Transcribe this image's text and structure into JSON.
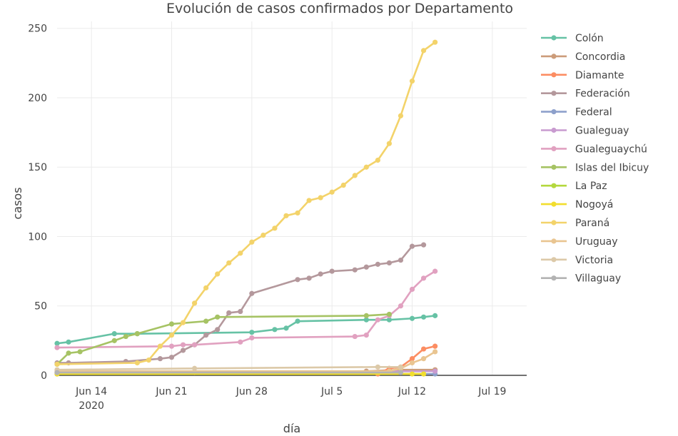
{
  "chart_data": {
    "type": "line",
    "title": "Evolución de casos confirmados por Departamento",
    "xlabel": "día",
    "ylabel": "casos",
    "x_ticks": [
      {
        "date": "2020-06-14",
        "label": "Jun 14",
        "sublabel": "2020"
      },
      {
        "date": "2020-06-21",
        "label": "Jun 21"
      },
      {
        "date": "2020-06-28",
        "label": "Jun 28"
      },
      {
        "date": "2020-07-05",
        "label": "Jul 5"
      },
      {
        "date": "2020-07-12",
        "label": "Jul 12"
      },
      {
        "date": "2020-07-19",
        "label": "Jul 19"
      }
    ],
    "xlim": [
      "2020-06-11",
      "2020-07-22"
    ],
    "y_ticks": [
      0,
      50,
      100,
      150,
      200,
      250
    ],
    "ylim": [
      0,
      255
    ],
    "grid": true,
    "legend_position": "right",
    "series": [
      {
        "name": "Colón",
        "color": "#66c2a5",
        "points": [
          [
            "2020-06-11",
            23
          ],
          [
            "2020-06-12",
            24
          ],
          [
            "2020-06-16",
            30
          ],
          [
            "2020-06-18",
            30
          ],
          [
            "2020-06-28",
            31
          ],
          [
            "2020-06-30",
            33
          ],
          [
            "2020-07-01",
            34
          ],
          [
            "2020-07-02",
            39
          ],
          [
            "2020-07-08",
            40
          ],
          [
            "2020-07-10",
            40
          ],
          [
            "2020-07-12",
            41
          ],
          [
            "2020-07-13",
            42
          ],
          [
            "2020-07-14",
            43
          ]
        ]
      },
      {
        "name": "Concordia",
        "color": "#cc9c7a",
        "points": [
          [
            "2020-06-11",
            2
          ],
          [
            "2020-06-23",
            2
          ],
          [
            "2020-07-08",
            3
          ],
          [
            "2020-07-11",
            4
          ],
          [
            "2020-07-14",
            4
          ]
        ]
      },
      {
        "name": "Diamante",
        "color": "#fc8d62",
        "points": [
          [
            "2020-06-11",
            1
          ],
          [
            "2020-07-09",
            1
          ],
          [
            "2020-07-10",
            5
          ],
          [
            "2020-07-11",
            6
          ],
          [
            "2020-07-12",
            12
          ],
          [
            "2020-07-13",
            19
          ],
          [
            "2020-07-14",
            21
          ]
        ]
      },
      {
        "name": "Federación",
        "color": "#b4989c",
        "points": [
          [
            "2020-06-11",
            9
          ],
          [
            "2020-06-12",
            9
          ],
          [
            "2020-06-17",
            10
          ],
          [
            "2020-06-20",
            12
          ],
          [
            "2020-06-21",
            13
          ],
          [
            "2020-06-22",
            18
          ],
          [
            "2020-06-23",
            22
          ],
          [
            "2020-06-24",
            29
          ],
          [
            "2020-06-25",
            33
          ],
          [
            "2020-06-26",
            45
          ],
          [
            "2020-06-27",
            46
          ],
          [
            "2020-06-28",
            59
          ],
          [
            "2020-07-02",
            69
          ],
          [
            "2020-07-03",
            70
          ],
          [
            "2020-07-04",
            73
          ],
          [
            "2020-07-05",
            75
          ],
          [
            "2020-07-07",
            76
          ],
          [
            "2020-07-08",
            78
          ],
          [
            "2020-07-09",
            80
          ],
          [
            "2020-07-10",
            81
          ],
          [
            "2020-07-11",
            83
          ],
          [
            "2020-07-12",
            93
          ],
          [
            "2020-07-13",
            94
          ]
        ]
      },
      {
        "name": "Federal",
        "color": "#8da0cb",
        "points": [
          [
            "2020-06-11",
            1
          ],
          [
            "2020-07-14",
            1
          ]
        ]
      },
      {
        "name": "Gualeguay",
        "color": "#c99bd0",
        "points": [
          [
            "2020-06-11",
            2
          ],
          [
            "2020-07-14",
            3
          ]
        ]
      },
      {
        "name": "Gualeguaychú",
        "color": "#e1a1c0",
        "points": [
          [
            "2020-06-11",
            20
          ],
          [
            "2020-06-21",
            21
          ],
          [
            "2020-06-22",
            22
          ],
          [
            "2020-06-23",
            22
          ],
          [
            "2020-06-27",
            24
          ],
          [
            "2020-06-28",
            27
          ],
          [
            "2020-07-07",
            28
          ],
          [
            "2020-07-08",
            29
          ],
          [
            "2020-07-09",
            40
          ],
          [
            "2020-07-10",
            43
          ],
          [
            "2020-07-11",
            50
          ],
          [
            "2020-07-12",
            62
          ],
          [
            "2020-07-13",
            70
          ],
          [
            "2020-07-14",
            75
          ]
        ]
      },
      {
        "name": "Islas del Ibicuy",
        "color": "#a6c364",
        "points": [
          [
            "2020-06-11",
            8
          ],
          [
            "2020-06-12",
            16
          ],
          [
            "2020-06-13",
            17
          ],
          [
            "2020-06-16",
            25
          ],
          [
            "2020-06-17",
            28
          ],
          [
            "2020-06-18",
            30
          ],
          [
            "2020-06-21",
            37
          ],
          [
            "2020-06-24",
            39
          ],
          [
            "2020-06-25",
            42
          ],
          [
            "2020-07-08",
            43
          ],
          [
            "2020-07-10",
            44
          ]
        ]
      },
      {
        "name": "La Paz",
        "color": "#b4d83e",
        "points": [
          [
            "2020-06-11",
            1
          ],
          [
            "2020-07-13",
            1
          ]
        ]
      },
      {
        "name": "Nogoyá",
        "color": "#f2de2e",
        "points": [
          [
            "2020-06-11",
            1
          ],
          [
            "2020-07-12",
            1
          ],
          [
            "2020-07-13",
            1
          ]
        ]
      },
      {
        "name": "Paraná",
        "color": "#f3d36a",
        "points": [
          [
            "2020-06-11",
            8
          ],
          [
            "2020-06-18",
            9
          ],
          [
            "2020-06-19",
            11
          ],
          [
            "2020-06-20",
            21
          ],
          [
            "2020-06-21",
            29
          ],
          [
            "2020-06-22",
            38
          ],
          [
            "2020-06-23",
            52
          ],
          [
            "2020-06-24",
            63
          ],
          [
            "2020-06-25",
            73
          ],
          [
            "2020-06-26",
            81
          ],
          [
            "2020-06-27",
            88
          ],
          [
            "2020-06-28",
            96
          ],
          [
            "2020-06-29",
            101
          ],
          [
            "2020-06-30",
            106
          ],
          [
            "2020-07-01",
            115
          ],
          [
            "2020-07-02",
            117
          ],
          [
            "2020-07-03",
            126
          ],
          [
            "2020-07-04",
            128
          ],
          [
            "2020-07-05",
            132
          ],
          [
            "2020-07-06",
            137
          ],
          [
            "2020-07-07",
            144
          ],
          [
            "2020-07-08",
            150
          ],
          [
            "2020-07-09",
            155
          ],
          [
            "2020-07-10",
            167
          ],
          [
            "2020-07-11",
            187
          ],
          [
            "2020-07-12",
            212
          ],
          [
            "2020-07-13",
            234
          ],
          [
            "2020-07-14",
            240
          ]
        ]
      },
      {
        "name": "Uruguay",
        "color": "#e9c591",
        "points": [
          [
            "2020-06-11",
            3
          ],
          [
            "2020-07-10",
            3
          ],
          [
            "2020-07-11",
            5
          ],
          [
            "2020-07-12",
            9
          ],
          [
            "2020-07-13",
            12
          ],
          [
            "2020-07-14",
            17
          ]
        ]
      },
      {
        "name": "Victoria",
        "color": "#dcc9a8",
        "points": [
          [
            "2020-06-11",
            4
          ],
          [
            "2020-06-23",
            5
          ],
          [
            "2020-07-09",
            6
          ],
          [
            "2020-07-11",
            6
          ]
        ]
      },
      {
        "name": "Villaguay",
        "color": "#b3b3b3",
        "points": [
          [
            "2020-06-11",
            2
          ],
          [
            "2020-07-11",
            2
          ]
        ]
      }
    ]
  }
}
